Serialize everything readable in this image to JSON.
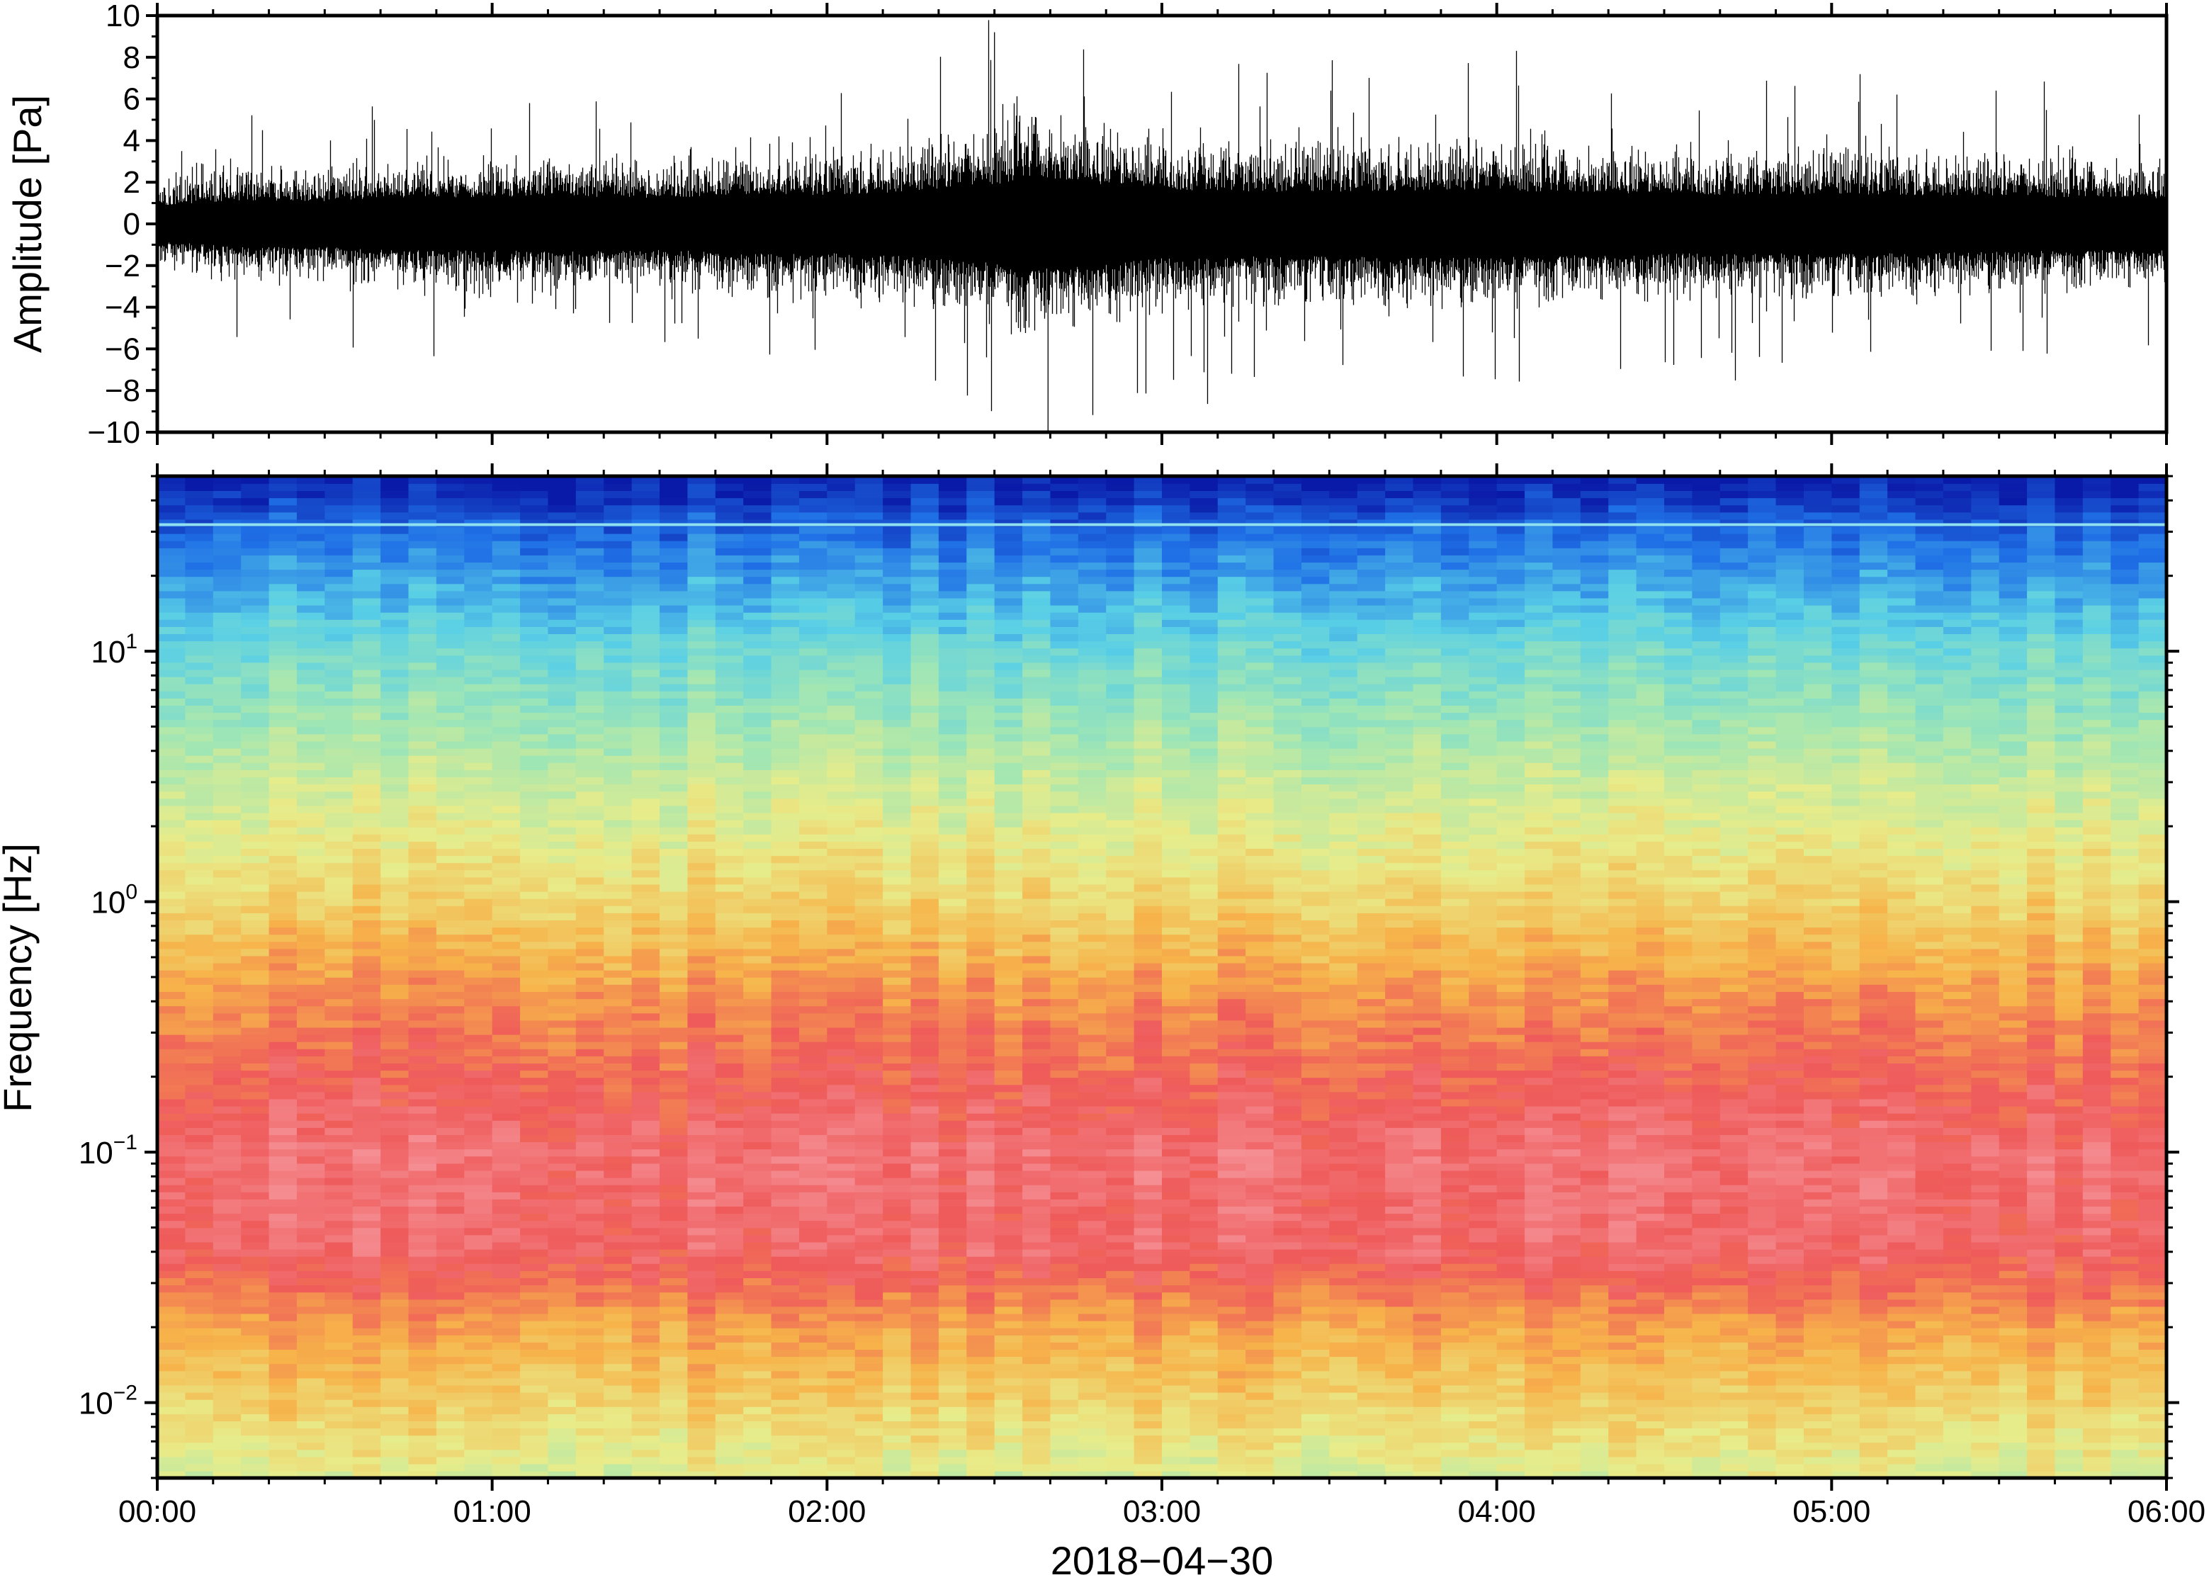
{
  "chart_data": [
    {
      "type": "line",
      "panel": "waveform",
      "ylabel": "Amplitude [Pa]",
      "xlabel": "",
      "ylim": [
        -10,
        10
      ],
      "y_ticks": [
        10,
        8,
        6,
        4,
        2,
        0,
        -2,
        -4,
        -6,
        -8,
        -10
      ],
      "y_tick_labels": [
        "10",
        "8",
        "6",
        "4",
        "2",
        "0",
        "−2",
        "−4",
        "−6",
        "−8",
        "−10"
      ],
      "xlim": [
        "00:00",
        "06:00"
      ],
      "grid": false,
      "series": [
        {
          "color": "#000000",
          "x_hours": [
            0.0,
            0.25,
            0.5,
            0.75,
            1.0,
            1.25,
            1.5,
            1.75,
            2.0,
            2.25,
            2.5,
            2.6,
            2.75,
            3.0,
            3.25,
            3.5,
            3.75,
            4.0,
            4.25,
            4.5,
            4.75,
            5.0,
            5.25,
            5.5,
            5.75,
            6.0
          ],
          "envelope_pa": [
            1.5,
            2.0,
            2.0,
            2.3,
            2.3,
            2.4,
            2.2,
            2.6,
            2.5,
            2.8,
            3.4,
            4.0,
            3.6,
            3.0,
            2.8,
            2.8,
            2.9,
            2.9,
            2.7,
            2.6,
            2.5,
            2.6,
            2.5,
            2.4,
            2.3,
            2.2
          ],
          "max_peak_pa": 9.2,
          "min_peak_pa": -10
        }
      ]
    },
    {
      "type": "heatmap",
      "panel": "spectrogram",
      "ylabel": "Frequency [Hz]",
      "xlabel": "2018−04−30",
      "x_tick_labels": [
        "00:00",
        "01:00",
        "02:00",
        "03:00",
        "04:00",
        "05:00",
        "06:00"
      ],
      "y_scale": "log",
      "ylim_hz": [
        0.005,
        50
      ],
      "y_ticks_hz": [
        0.01,
        0.1,
        1,
        10
      ],
      "y_tick_labels": [
        {
          "base": "10",
          "exp": "−2"
        },
        {
          "base": "10",
          "exp": "−1"
        },
        {
          "base": "10",
          "exp": "0"
        },
        {
          "base": "10",
          "exp": "1"
        }
      ],
      "colormap": "rainbow-to-pink",
      "colormap_stops": [
        "#0a1aa8",
        "#1f6fe6",
        "#59cfe6",
        "#9fe6b5",
        "#e8ec8a",
        "#f7b34a",
        "#ef5a5a",
        "#f69aa0",
        "#fad8d8"
      ],
      "time_bins": 72,
      "freq_bins": 140,
      "spectral_line_hz": 32,
      "grid": false
    }
  ]
}
